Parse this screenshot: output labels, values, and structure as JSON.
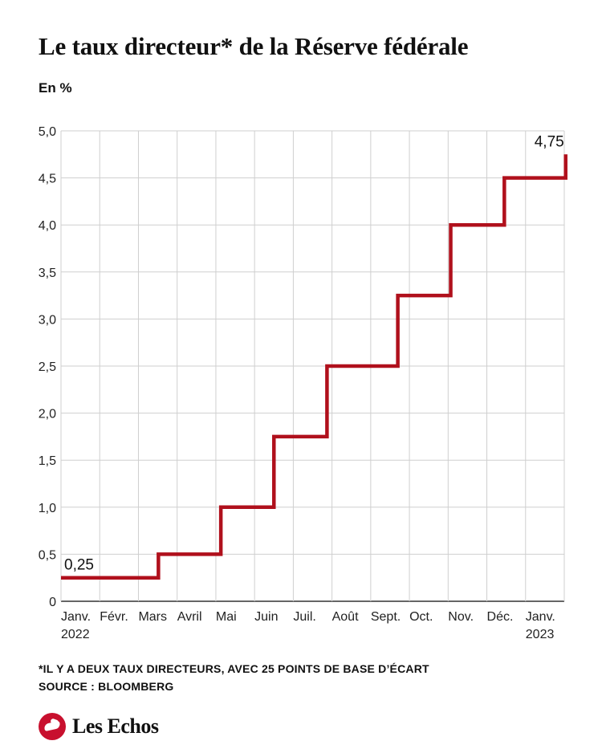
{
  "header": {
    "title": "Le taux directeur* de la Réserve fédérale",
    "unit": "En %"
  },
  "chart_data": {
    "type": "line",
    "step": true,
    "color": "#b0101c",
    "ylim": [
      0,
      5.0
    ],
    "y_ticks": [
      "0",
      "0,5",
      "1,0",
      "1,5",
      "2,0",
      "2,5",
      "3,0",
      "3,5",
      "4,0",
      "4,5",
      "5,0"
    ],
    "categories": [
      {
        "month": "Janv.",
        "year": "2022"
      },
      {
        "month": "Févr.",
        "year": ""
      },
      {
        "month": "Mars",
        "year": ""
      },
      {
        "month": "Avril",
        "year": ""
      },
      {
        "month": "Mai",
        "year": ""
      },
      {
        "month": "Juin",
        "year": ""
      },
      {
        "month": "Juil.",
        "year": ""
      },
      {
        "month": "Août",
        "year": ""
      },
      {
        "month": "Sept.",
        "year": ""
      },
      {
        "month": "Oct.",
        "year": ""
      },
      {
        "month": "Nov.",
        "year": ""
      },
      {
        "month": "Déc.",
        "year": ""
      },
      {
        "month": "Janv.",
        "year": "2023"
      }
    ],
    "series": [
      {
        "points": [
          {
            "date": "2022-01-01",
            "value": 0.25
          },
          {
            "date": "2022-03-17",
            "value": 0.5
          },
          {
            "date": "2022-05-05",
            "value": 1.0
          },
          {
            "date": "2022-06-16",
            "value": 1.75
          },
          {
            "date": "2022-07-28",
            "value": 2.5
          },
          {
            "date": "2022-09-22",
            "value": 3.25
          },
          {
            "date": "2022-11-03",
            "value": 4.0
          },
          {
            "date": "2022-12-15",
            "value": 4.5
          },
          {
            "date": "2023-02-02",
            "value": 4.75
          }
        ]
      }
    ],
    "annotations": [
      {
        "text": "0,25",
        "date": "2022-01-01",
        "value": 0.25
      },
      {
        "text": "4,75",
        "date": "2023-02-02",
        "value": 4.75
      }
    ]
  },
  "footer": {
    "note": "*IL Y A DEUX TAUX DIRECTEURS, AVEC 25 POINTS DE BASE D’ÉCART",
    "source": "SOURCE : BLOOMBERG",
    "brand": "Les Echos"
  }
}
